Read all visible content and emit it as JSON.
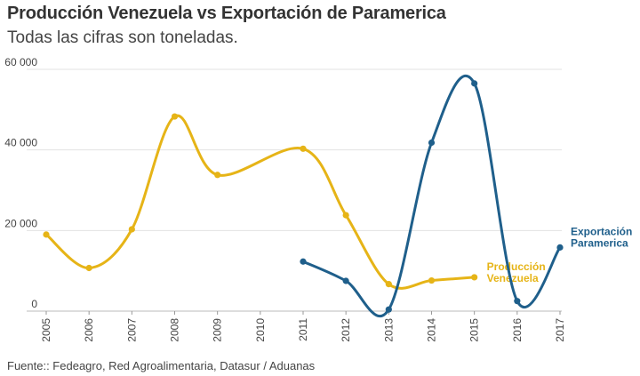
{
  "header": {
    "title": "Producción Venezuela vs Exportación de Paramerica",
    "subtitle": "Todas las cifras son toneladas."
  },
  "footer": {
    "source": "Fuente:: Fedeagro, Red Agroalimentaria, Datasur / Aduanas"
  },
  "colors": {
    "produccion": "#e6b417",
    "exportacion": "#1f5f8b",
    "grid": "#e3e3e3",
    "axis_text": "#444444"
  },
  "chart_data": {
    "type": "line",
    "title": "Producción Venezuela vs Exportación de Paramerica",
    "subtitle": "Todas las cifras son toneladas.",
    "x": [
      "2005",
      "2006",
      "2007",
      "2008",
      "2009",
      "2010",
      "2011",
      "2012",
      "2013",
      "2014",
      "2015",
      "2016",
      "2017"
    ],
    "ylim": [
      0,
      60000
    ],
    "yticks": [
      0,
      20000,
      40000,
      60000
    ],
    "ytick_labels": [
      "0",
      "20 000",
      "40 000",
      "60 000"
    ],
    "grid": true,
    "series": [
      {
        "name": "Producción Venezuela",
        "label_lines": [
          "Producción",
          "Venezuela"
        ],
        "color": "#e6b417",
        "values": [
          19000,
          10700,
          20300,
          48300,
          33800,
          null,
          40300,
          23800,
          6700,
          7600,
          8400,
          null,
          null
        ]
      },
      {
        "name": "Exportación Paramerica",
        "label_lines": [
          "Exportación",
          "Paramerica"
        ],
        "color": "#1f5f8b",
        "values": [
          null,
          null,
          null,
          null,
          null,
          null,
          12300,
          7500,
          400,
          41800,
          56500,
          2500,
          15800
        ]
      }
    ]
  }
}
